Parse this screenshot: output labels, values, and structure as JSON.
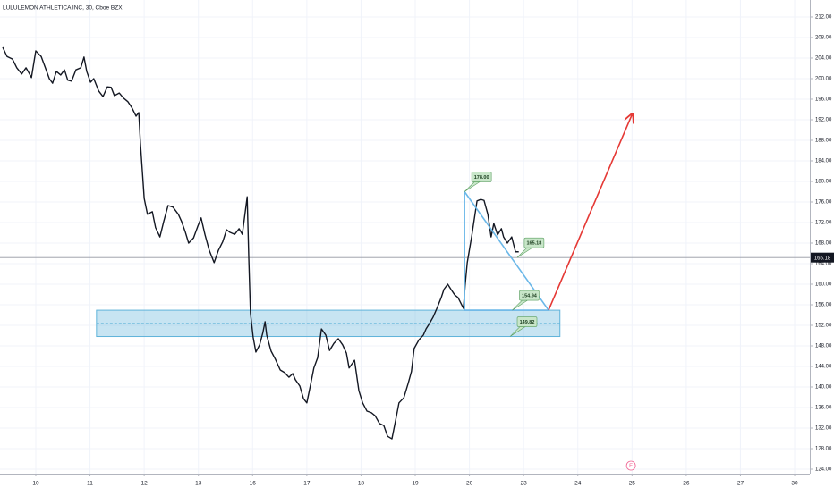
{
  "chart_data": {
    "type": "line",
    "title": "LULULEMON ATHLETICA INC, 30, Cboe BZX",
    "xlim": [
      -0.66,
      14.28
    ],
    "ylim": [
      123.13,
      215.3
    ],
    "grid": true,
    "xticks": [
      {
        "value": 0,
        "label": "10"
      },
      {
        "value": 1,
        "label": "11"
      },
      {
        "value": 2,
        "label": "12"
      },
      {
        "value": 3,
        "label": "13"
      },
      {
        "value": 4,
        "label": "16"
      },
      {
        "value": 5,
        "label": "17"
      },
      {
        "value": 6,
        "label": "18"
      },
      {
        "value": 7,
        "label": "19"
      },
      {
        "value": 8,
        "label": "20"
      },
      {
        "value": 9,
        "label": "23"
      },
      {
        "value": 10,
        "label": "24"
      },
      {
        "value": 11,
        "label": "25"
      },
      {
        "value": 12,
        "label": "26"
      },
      {
        "value": 13,
        "label": "27"
      },
      {
        "value": 14,
        "label": "30"
      }
    ],
    "yticks": [
      {
        "value": 124,
        "label": "124.00"
      },
      {
        "value": 128,
        "label": "128.00"
      },
      {
        "value": 132,
        "label": "132.00"
      },
      {
        "value": 136,
        "label": "136.00"
      },
      {
        "value": 140,
        "label": "140.00"
      },
      {
        "value": 144,
        "label": "144.00"
      },
      {
        "value": 148,
        "label": "148.00"
      },
      {
        "value": 152,
        "label": "152.00"
      },
      {
        "value": 156,
        "label": "156.00"
      },
      {
        "value": 160,
        "label": "160.00"
      },
      {
        "value": 164,
        "label": "164.00"
      },
      {
        "value": 168,
        "label": "168.00"
      },
      {
        "value": 172,
        "label": "172.00"
      },
      {
        "value": 176,
        "label": "176.00"
      },
      {
        "value": 180,
        "label": "180.00"
      },
      {
        "value": 184,
        "label": "184.00"
      },
      {
        "value": 188,
        "label": "188.00"
      },
      {
        "value": 192,
        "label": "192.00"
      },
      {
        "value": 196,
        "label": "196.00"
      },
      {
        "value": 200,
        "label": "200.00"
      },
      {
        "value": 204,
        "label": "204.00"
      },
      {
        "value": 208,
        "label": "208.00"
      },
      {
        "value": 212,
        "label": "212.00"
      }
    ],
    "x": [
      -0.61,
      -0.53,
      -0.43,
      -0.35,
      -0.26,
      -0.18,
      -0.12,
      -0.08,
      0,
      0.1,
      0.17,
      0.25,
      0.31,
      0.38,
      0.46,
      0.53,
      0.59,
      0.66,
      0.74,
      0.83,
      0.89,
      0.94,
      1.01,
      1.07,
      1.16,
      1.24,
      1.32,
      1.39,
      1.45,
      1.54,
      1.62,
      1.7,
      1.77,
      1.85,
      1.9,
      1.93,
      2.0,
      2.06,
      2.15,
      2.21,
      2.29,
      2.36,
      2.44,
      2.53,
      2.63,
      2.69,
      2.76,
      2.82,
      2.91,
      2.99,
      3.05,
      3.12,
      3.2,
      3.29,
      3.37,
      3.45,
      3.52,
      3.58,
      3.67,
      3.75,
      3.81,
      3.9,
      3.93,
      3.96,
      4.01,
      4.06,
      4.13,
      4.19,
      4.23,
      4.26,
      4.34,
      4.42,
      4.51,
      4.59,
      4.67,
      4.74,
      4.79,
      4.87,
      4.94,
      5.0,
      5.07,
      5.13,
      5.2,
      5.27,
      5.35,
      5.42,
      5.5,
      5.58,
      5.66,
      5.73,
      5.78,
      5.88,
      5.96,
      6.03,
      6.11,
      6.19,
      6.26,
      6.34,
      6.42,
      6.49,
      6.57,
      6.64,
      6.7,
      6.79,
      6.87,
      6.93,
      6.98,
      7.07,
      7.15,
      7.2,
      7.26,
      7.33,
      7.4,
      7.48,
      7.53,
      7.6,
      7.66,
      7.73,
      7.79,
      7.89,
      7.92,
      7.96,
      8.04,
      8.09,
      8.14,
      8.21,
      8.27,
      8.34,
      8.4,
      8.45,
      8.52,
      8.59,
      8.63,
      8.7,
      8.78,
      8.85,
      8.91
    ],
    "series": [
      {
        "color": "#131722",
        "values": [
          206.1,
          204.3,
          203.8,
          202.1,
          200.9,
          202.1,
          201.0,
          200.2,
          205.4,
          204.3,
          202.3,
          200.0,
          199.1,
          201.4,
          200.7,
          201.7,
          199.7,
          199.5,
          201.7,
          202.1,
          204.2,
          201.4,
          199.3,
          200.0,
          197.6,
          196.5,
          198.4,
          198.3,
          196.7,
          197.2,
          196.2,
          195.5,
          194.4,
          192.7,
          193.4,
          187.5,
          176.7,
          173.6,
          174.1,
          171.0,
          169.2,
          172.2,
          175.3,
          175.0,
          173.6,
          172.2,
          170.1,
          168.0,
          169.0,
          171.3,
          172.9,
          169.7,
          166.6,
          164.2,
          166.6,
          168.3,
          170.6,
          170.1,
          169.7,
          170.8,
          169.7,
          177.0,
          164.9,
          154.4,
          149.7,
          146.8,
          148.2,
          150.6,
          152.7,
          150.1,
          147.0,
          145.4,
          143.3,
          142.8,
          141.9,
          142.6,
          141.4,
          140.2,
          137.7,
          136.9,
          140.5,
          143.7,
          145.7,
          151.3,
          150.1,
          147.1,
          148.5,
          149.4,
          148.2,
          146.6,
          143.7,
          145.2,
          139.3,
          136.9,
          135.3,
          135.0,
          134.4,
          132.9,
          132.5,
          130.4,
          129.9,
          133.6,
          136.9,
          137.9,
          140.7,
          143.0,
          147.5,
          149.2,
          150.1,
          151.3,
          152.3,
          153.6,
          155.3,
          157.4,
          159.0,
          160.0,
          159.0,
          157.9,
          157.4,
          155.3,
          159.7,
          164.2,
          169.2,
          172.7,
          176.2,
          176.5,
          176.3,
          173.6,
          169.2,
          171.8,
          169.6,
          170.8,
          169.2,
          168.0,
          169.2,
          166.3,
          166.3
        ]
      }
    ],
    "last_price": {
      "value": 165.18,
      "label": "165.18"
    },
    "zone": {
      "x": [
        1.12,
        9.67
      ],
      "y": [
        149.82,
        154.94
      ],
      "color": "#5fb3d9"
    },
    "triangle": {
      "x": [
        7.91,
        7.91,
        9.46
      ],
      "y": [
        178,
        154.94,
        154.94
      ],
      "color": "#6ab7e8"
    },
    "arrow": {
      "x": [
        9.46,
        11.0
      ],
      "y": [
        154.94,
        193.0
      ],
      "color": "#e53935"
    },
    "price_labels": [
      {
        "x": 7.91,
        "value": 178,
        "label": "178.00"
      },
      {
        "x": 8.88,
        "value": 165.18,
        "label": "165.18"
      },
      {
        "x": 8.79,
        "value": 154.94,
        "label": "154.94"
      },
      {
        "x": 8.75,
        "value": 149.82,
        "label": "149.82"
      }
    ],
    "earnings": {
      "x": 10.98,
      "label": "E"
    }
  }
}
